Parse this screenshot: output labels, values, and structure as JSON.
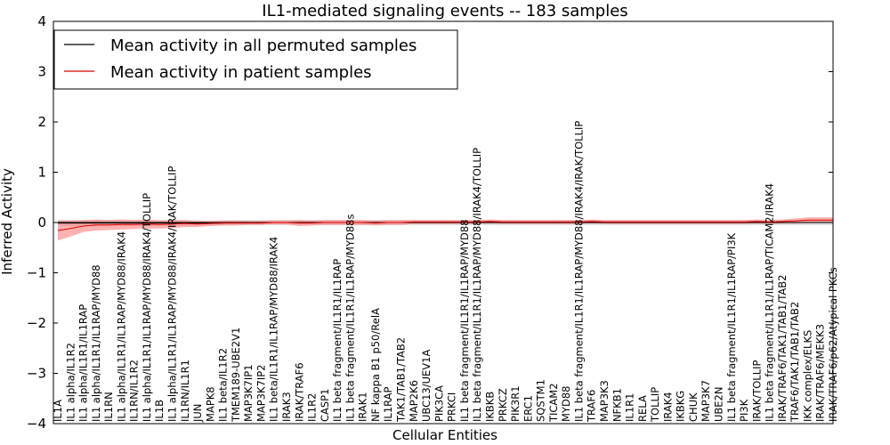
{
  "chart_data": {
    "type": "line",
    "title": "IL1-mediated signaling events -- 183 samples",
    "xlabel": "Cellular Entities",
    "ylabel": "Inferred Activity",
    "ylim": [
      -4,
      4
    ],
    "yticks": [
      4,
      3,
      2,
      1,
      0,
      -1,
      -2,
      -3,
      -4
    ],
    "ytick_labels": [
      "4",
      "3",
      "2",
      "1",
      "0",
      "−1",
      "−2",
      "−3",
      "−4"
    ],
    "legend_position": "top-left",
    "categories": [
      "IL1A",
      "IL1 alpha/IL1R2",
      "IL1 alpha/IL1R1/IL1RAP",
      "IL1 alpha/IL1R1/IL1RAP/MYD88",
      "IL1RN",
      "IL1 alpha/IL1R1/IL1RAP/MYD88/IRAK4",
      "IL1RN/IL1R2",
      "IL1 alpha/IL1R1/IL1RAP/MYD88/IRAK4/TOLLIP",
      "IL1B",
      "IL1 alpha/IL1R1/IL1RAP/MYD88/IRAK4/IRAK/TOLLIP",
      "IL1RN/IL1R1",
      "JUN",
      "MAPK8",
      "IL1 beta/IL1R2",
      "TMEM189-UBE2V1",
      "MAP3K7IP1",
      "MAP3K7IP2",
      "IL1 beta/IL1R1/IL1RAP/MYD88/IRAK4",
      "IRAK3",
      "IRAK/TRAF6",
      "IL1R2",
      "CASP1",
      "IL1 beta fragment/IL1R1/IL1RAP",
      "IL1 beta fragment/IL1R1/IL1RAP/MYD88s",
      "IRAK1",
      "NF kappa B1 p50/RelA",
      "IL1RAP",
      "TAK1/TAB1/TAB2",
      "MAP2K6",
      "UBC13/UEV1A",
      "PIK3CA",
      "PRKCI",
      "IL1 beta fragment/IL1R1/IL1RAP/MYD88",
      "IL1 beta fragment/IL1R1/IL1RAP/MYD88/IRAK4/TOLLIP",
      "IKBKB",
      "PRKCZ",
      "PIK3R1",
      "ERC1",
      "SQSTM1",
      "TICAM2",
      "MYD88",
      "IL1 beta fragment/IL1R1/IL1RAP/MYD88/IRAK4/IRAK/TOLLIP",
      "TRAF6",
      "MAP3K3",
      "NFKB1",
      "IL1R1",
      "RELA",
      "TOLLIP",
      "IRAK4",
      "IKBKG",
      "CHUK",
      "MAP3K7",
      "UBE2N",
      "IL1 beta fragment/IL1R1/IL1RAP/PI3K",
      "PI3K",
      "IRAK/TOLLIP",
      "IL1 beta fragment/IL1R1/IL1RAP/TICAM2/IRAK4",
      "IRAK/TRAF6/TAK1/TAB1/TAB2",
      "TRAF6/TAK1/TAB1/TAB2",
      "IKK complex/ELKS",
      "IRAK/TRAF6/MEKK3",
      "IRAK/TRAF6/p62/Atypical PKCs"
    ],
    "series": [
      {
        "name": "Mean activity in all permuted samples",
        "color": "#000000",
        "band_color": "#bbbbbb",
        "values": [
          -0.01,
          -0.01,
          -0.01,
          -0.01,
          -0.01,
          -0.01,
          -0.01,
          -0.01,
          -0.01,
          -0.01,
          -0.01,
          -0.01,
          -0.01,
          -0.01,
          0.0,
          0.0,
          0.0,
          0.0,
          0.0,
          0.0,
          0.0,
          0.0,
          0.0,
          0.0,
          0.0,
          0.0,
          0.0,
          0.0,
          0.0,
          0.0,
          0.0,
          0.0,
          0.0,
          0.0,
          0.0,
          0.0,
          0.0,
          0.0,
          0.0,
          0.0,
          0.0,
          0.0,
          0.0,
          0.0,
          0.0,
          0.0,
          0.0,
          0.0,
          0.0,
          0.0,
          0.0,
          0.0,
          0.0,
          0.0,
          0.0,
          0.0,
          0.0,
          0.0,
          0.0,
          0.0,
          0.0,
          0.0
        ],
        "spread": [
          0.06,
          0.06,
          0.06,
          0.06,
          0.06,
          0.06,
          0.06,
          0.06,
          0.06,
          0.06,
          0.06,
          0.05,
          0.05,
          0.05,
          0.05,
          0.05,
          0.05,
          0.05,
          0.05,
          0.05,
          0.05,
          0.05,
          0.05,
          0.05,
          0.05,
          0.05,
          0.05,
          0.05,
          0.05,
          0.05,
          0.05,
          0.05,
          0.05,
          0.05,
          0.05,
          0.05,
          0.05,
          0.05,
          0.05,
          0.05,
          0.05,
          0.05,
          0.05,
          0.05,
          0.05,
          0.05,
          0.05,
          0.05,
          0.05,
          0.05,
          0.05,
          0.05,
          0.05,
          0.05,
          0.05,
          0.05,
          0.05,
          0.05,
          0.05,
          0.05,
          0.05,
          0.05
        ]
      },
      {
        "name": "Mean activity in patient samples",
        "color": "#e00000",
        "band_color": "#ff7f7f",
        "values": [
          -0.16,
          -0.12,
          -0.07,
          -0.05,
          -0.05,
          -0.04,
          -0.04,
          -0.03,
          -0.04,
          -0.03,
          -0.02,
          -0.03,
          -0.02,
          -0.01,
          -0.01,
          -0.01,
          -0.01,
          0.0,
          0.0,
          -0.01,
          -0.01,
          0.0,
          0.0,
          0.0,
          0.0,
          -0.01,
          0.0,
          0.0,
          0.01,
          0.01,
          0.01,
          0.01,
          0.01,
          0.01,
          0.02,
          0.01,
          0.01,
          0.01,
          0.01,
          0.01,
          0.01,
          0.01,
          0.02,
          0.01,
          0.01,
          0.01,
          0.01,
          0.01,
          0.01,
          0.01,
          0.01,
          0.01,
          0.01,
          0.01,
          0.01,
          0.02,
          0.01,
          0.02,
          0.03,
          0.05,
          0.05,
          0.05
        ],
        "spread": [
          0.2,
          0.16,
          0.12,
          0.11,
          0.1,
          0.1,
          0.09,
          0.09,
          0.08,
          0.08,
          0.07,
          0.06,
          0.05,
          0.05,
          0.05,
          0.04,
          0.04,
          0.04,
          0.04,
          0.06,
          0.05,
          0.05,
          0.05,
          0.05,
          0.05,
          0.05,
          0.05,
          0.05,
          0.04,
          0.04,
          0.04,
          0.04,
          0.04,
          0.04,
          0.04,
          0.04,
          0.04,
          0.04,
          0.04,
          0.04,
          0.04,
          0.04,
          0.04,
          0.04,
          0.04,
          0.04,
          0.04,
          0.04,
          0.04,
          0.04,
          0.04,
          0.04,
          0.04,
          0.04,
          0.04,
          0.04,
          0.04,
          0.04,
          0.05,
          0.05,
          0.05,
          0.05
        ]
      }
    ]
  }
}
